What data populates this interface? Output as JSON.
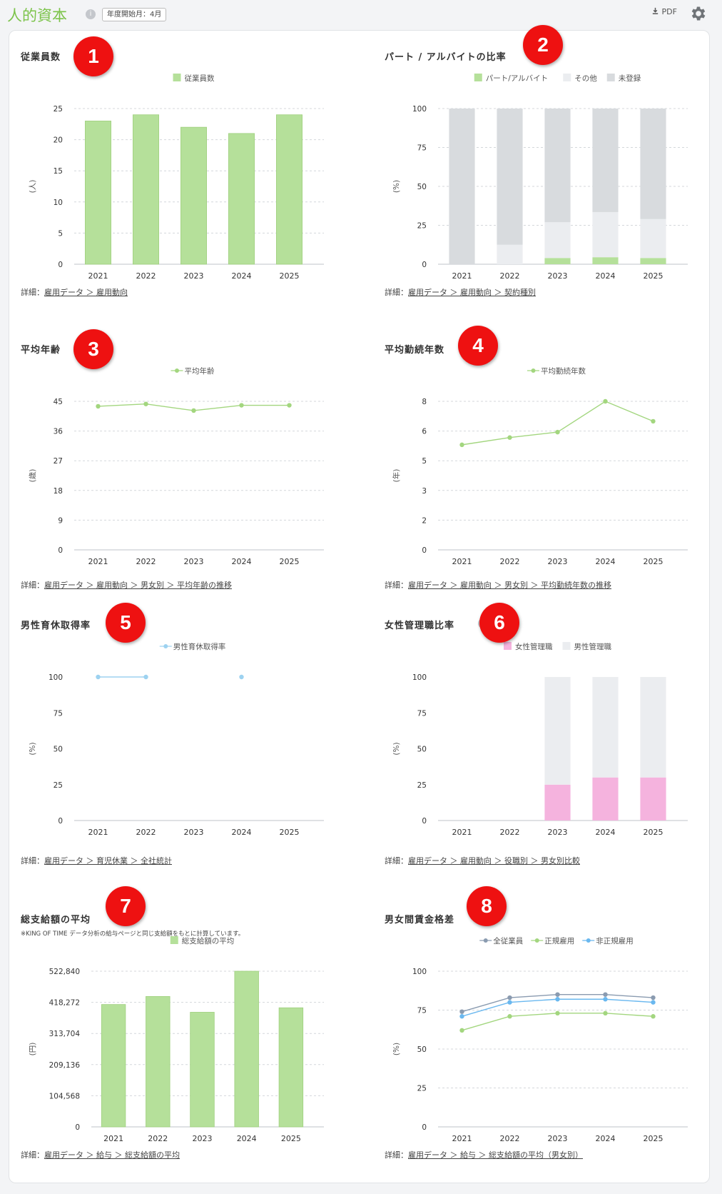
{
  "header": {
    "title": "人的資本",
    "fiscal_badge": "年度開始月：4月",
    "pdf_label": "PDF"
  },
  "info_glyph": "i",
  "panels": [
    {
      "badge": "1",
      "title": "従業員数",
      "detail_prefix": "詳細：",
      "detail_link": "雇用データ ＞ 雇用動向",
      "chart_data": {
        "type": "bar",
        "categories": [
          "2021",
          "2022",
          "2023",
          "2024",
          "2025"
        ],
        "series": [
          {
            "name": "従業員数",
            "values": [
              23,
              24,
              22,
              21,
              24
            ],
            "color": "#b5e09a"
          }
        ],
        "ylabel": "(人)",
        "ylim": [
          0,
          25
        ],
        "yticks": [
          "25",
          "20",
          "15",
          "10",
          "5",
          "0"
        ],
        "grid": true,
        "legend": "top"
      }
    },
    {
      "badge": "2",
      "title": "パート / アルバイトの比率",
      "detail_prefix": "詳細：",
      "detail_link": "雇用データ ＞ 雇用動向 ＞ 契約種別",
      "chart_data": {
        "type": "bar",
        "stacked": true,
        "categories": [
          "2021",
          "2022",
          "2023",
          "2024",
          "2025"
        ],
        "series": [
          {
            "name": "パート/アルバイト",
            "values": [
              0,
              0,
              4,
              4.5,
              4
            ],
            "color": "#b5e09a"
          },
          {
            "name": "その他",
            "values": [
              0,
              12.5,
              23,
              29,
              25
            ],
            "color": "#ebedf0"
          },
          {
            "name": "未登録",
            "values": [
              100,
              87.5,
              73,
              66.5,
              71
            ],
            "color": "#d8dbde"
          }
        ],
        "ylabel": "(%)",
        "ylim": [
          0,
          100
        ],
        "yticks": [
          "100",
          "75",
          "50",
          "25",
          "0"
        ],
        "grid": true,
        "legend": "top"
      }
    },
    {
      "badge": "3",
      "title": "平均年齢",
      "detail_prefix": "詳細：",
      "detail_link": "雇用データ ＞ 雇用動向 ＞ 男女別 ＞ 平均年齢の推移",
      "chart_data": {
        "type": "line",
        "categories": [
          "2021",
          "2022",
          "2023",
          "2024",
          "2025"
        ],
        "series": [
          {
            "name": "平均年齢",
            "values": [
              43.5,
              44.2,
              42.2,
              43.8,
              43.8
            ],
            "color": "#a3d67f"
          }
        ],
        "ylabel": "(歳)",
        "ylim": [
          0,
          45
        ],
        "yticks": [
          "45",
          "36",
          "27",
          "18",
          "9",
          "0"
        ],
        "grid": true,
        "legend": "top"
      }
    },
    {
      "badge": "4",
      "title": "平均勤続年数",
      "detail_prefix": "詳細：",
      "detail_link": "雇用データ ＞ 雇用動向 ＞ 男女別 ＞ 平均勤続年数の推移",
      "chart_data": {
        "type": "line",
        "categories": [
          "2021",
          "2022",
          "2023",
          "2024",
          "2025"
        ],
        "series": [
          {
            "name": "平均勤続年数",
            "values": [
              5.8,
              6.2,
              6.5,
              8.2,
              7.1
            ],
            "color": "#a3d67f"
          }
        ],
        "ylabel": "(年)",
        "ylim": [
          0,
          8.2
        ],
        "yticks": [
          "8",
          "6",
          "5",
          "3",
          "2",
          "0"
        ],
        "grid": true,
        "legend": "top"
      }
    },
    {
      "badge": "5",
      "title": "男性育休取得率",
      "detail_prefix": "詳細：",
      "detail_link": "雇用データ ＞ 育児休業 ＞ 全社統計",
      "chart_data": {
        "type": "line",
        "categories": [
          "2021",
          "2022",
          "2023",
          "2024",
          "2025"
        ],
        "series": [
          {
            "name": "男性育休取得率",
            "values": [
              100,
              100,
              null,
              100,
              null
            ],
            "color": "#9dd2f0"
          }
        ],
        "ylabel": "(%)",
        "ylim": [
          0,
          100
        ],
        "yticks": [
          "100",
          "75",
          "50",
          "25",
          "0"
        ],
        "grid": false,
        "legend": "top"
      }
    },
    {
      "badge": "6",
      "title": "女性管理職比率",
      "detail_prefix": "詳細：",
      "detail_link": "雇用データ ＞ 雇用動向 ＞ 役職別 ＞ 男女別比較",
      "chart_data": {
        "type": "bar",
        "stacked": true,
        "categories": [
          "2021",
          "2022",
          "2023",
          "2024",
          "2025"
        ],
        "series": [
          {
            "name": "女性管理職",
            "values": [
              0,
              0,
              25,
              30,
              30
            ],
            "color": "#f5b3de"
          },
          {
            "name": "男性管理職",
            "values": [
              0,
              0,
              75,
              70,
              70
            ],
            "color": "#ebedf0"
          }
        ],
        "ylabel": "(%)",
        "ylim": [
          0,
          100
        ],
        "yticks": [
          "100",
          "75",
          "50",
          "25",
          "0"
        ],
        "grid": false,
        "legend": "top"
      }
    },
    {
      "badge": "7",
      "title": "総支給額の平均",
      "note": "※KING OF TIME データ分析の給与ページと同じ支給額をもとに計算しています。",
      "detail_prefix": "詳細：",
      "detail_link": "雇用データ ＞ 給与 ＞ 総支給額の平均",
      "chart_data": {
        "type": "bar",
        "categories": [
          "2021",
          "2022",
          "2023",
          "2024",
          "2025"
        ],
        "series": [
          {
            "name": "総支給額の平均",
            "values": [
              411000,
              438000,
              385000,
              522840,
              400000
            ],
            "color": "#b5e09a"
          }
        ],
        "ylabel": "(円)",
        "ylim": [
          0,
          522840
        ],
        "yticks": [
          "522,840",
          "418,272",
          "313,704",
          "209,136",
          "104,568",
          "0"
        ],
        "grid": true,
        "legend": "top"
      }
    },
    {
      "badge": "8",
      "title": "男女間賃金格差",
      "detail_prefix": "詳細：",
      "detail_link": "雇用データ ＞ 給与 ＞ 総支給額の平均（男女別）",
      "chart_data": {
        "type": "line",
        "categories": [
          "2021",
          "2022",
          "2023",
          "2024",
          "2025"
        ],
        "series": [
          {
            "name": "全従業員",
            "values": [
              74,
              83,
              85,
              85,
              83
            ],
            "color": "#8a9bb0"
          },
          {
            "name": "正規雇用",
            "values": [
              62,
              71,
              73,
              73,
              71
            ],
            "color": "#a3d67f"
          },
          {
            "name": "非正規雇用",
            "values": [
              71,
              80,
              82,
              82,
              80
            ],
            "color": "#6ab8ef"
          }
        ],
        "ylabel": "(%)",
        "ylim": [
          0,
          100
        ],
        "yticks": [
          "100",
          "75",
          "50",
          "25",
          "0"
        ],
        "grid": true,
        "legend": "top"
      }
    }
  ]
}
